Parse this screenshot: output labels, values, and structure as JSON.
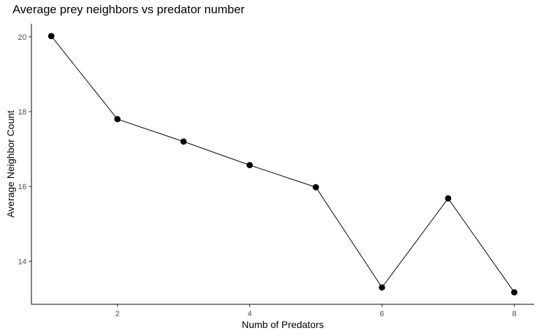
{
  "chart_data": {
    "type": "line",
    "title": "Average prey neighbors vs predator number",
    "xlabel": "Numb of Predators",
    "ylabel": "Average Neighbor Count",
    "x": [
      1,
      2,
      3,
      4,
      5,
      6,
      7,
      8
    ],
    "series": [
      {
        "values": [
          20.02,
          17.8,
          17.2,
          16.57,
          15.98,
          13.3,
          15.68,
          13.17
        ]
      }
    ],
    "x_ticks": [
      2,
      4,
      6,
      8
    ],
    "y_ticks": [
      14,
      16,
      18,
      20
    ],
    "xlim": [
      0.7,
      8.3
    ],
    "ylim": [
      12.85,
      20.35
    ],
    "grid": false,
    "legend": "none",
    "colors": {
      "line": "#000000",
      "point": "#000000",
      "axis": "#000000",
      "tick_text": "#4d4d4d"
    }
  }
}
